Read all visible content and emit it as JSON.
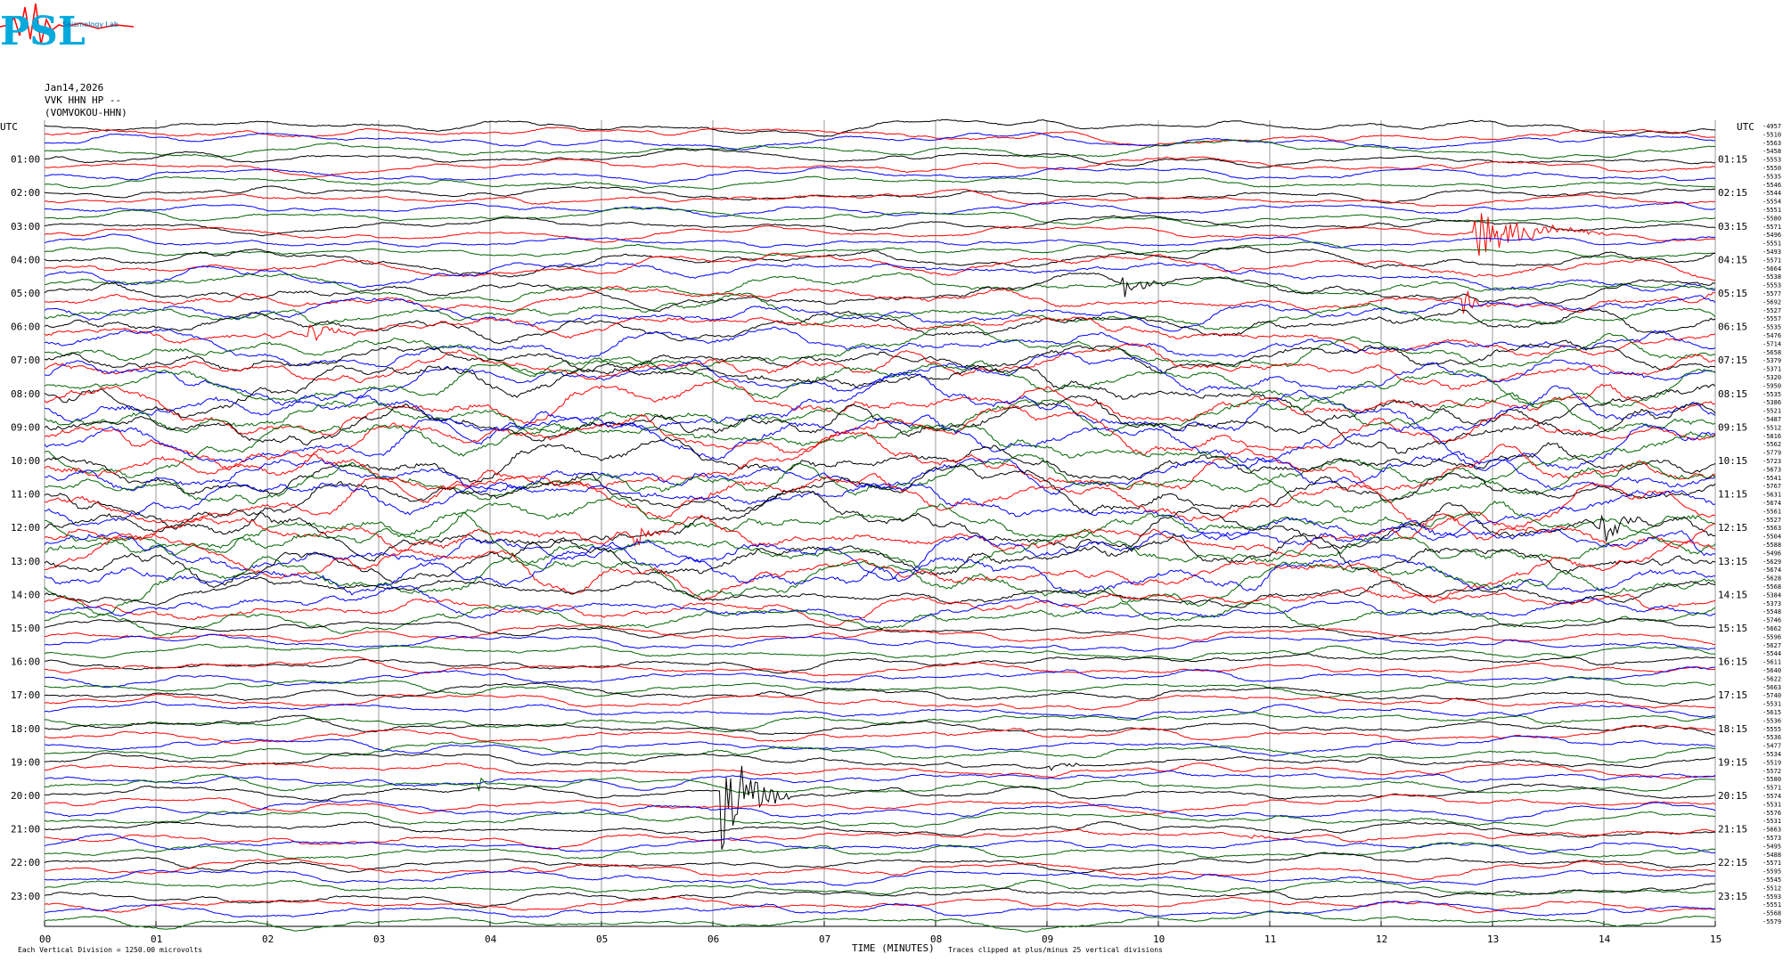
{
  "logo": {
    "text": "PSL",
    "subtitle": "Seismology Lab"
  },
  "header": {
    "date": "Jan14,2026",
    "station": "VVK HHN HP --",
    "station_name": "(VOMVOKOU-HHN)"
  },
  "chart_data": {
    "type": "line",
    "xlabel": "TIME (MINUTES)",
    "x_ticks": [
      "00",
      "01",
      "02",
      "03",
      "04",
      "05",
      "06",
      "07",
      "08",
      "09",
      "10",
      "11",
      "12",
      "13",
      "14",
      "15"
    ],
    "left_axis_label": "UTC",
    "right_axis_label": "UTC",
    "left_hour_labels": [
      "01:00",
      "02:00",
      "03:00",
      "04:00",
      "05:00",
      "06:00",
      "07:00",
      "08:00",
      "09:00",
      "10:00",
      "11:00",
      "12:00",
      "13:00",
      "14:00",
      "15:00",
      "16:00",
      "17:00",
      "18:00",
      "19:00",
      "20:00",
      "21:00",
      "22:00",
      "23:00"
    ],
    "right_hour_labels": [
      "01:15",
      "02:15",
      "03:15",
      "04:15",
      "05:15",
      "06:15",
      "07:15",
      "08:15",
      "09:15",
      "10:15",
      "11:15",
      "12:15",
      "13:15",
      "14:15",
      "15:15",
      "16:15",
      "17:15",
      "18:15",
      "19:15",
      "20:15",
      "21:15",
      "22:15",
      "23:15"
    ],
    "trace_colors": [
      "#000000",
      "#ff0000",
      "#0000ff",
      "#006400"
    ],
    "traces_per_hour": 4,
    "trace_count": 96,
    "trace_duration_minutes": 15,
    "right_values": [
      -4957,
      -5510,
      -5563,
      -5458,
      -5553,
      -5550,
      -5535,
      -5546,
      -5544,
      -5554,
      -5551,
      -5580,
      -5571,
      -5496,
      -5551,
      -5493,
      -5571,
      -5664,
      -5538,
      -5553,
      -5577,
      -5692,
      -5527,
      -5557,
      -5535,
      -5476,
      -5714,
      -5658,
      -5379,
      -5371,
      -5320,
      -5950,
      -5535,
      -5386,
      -5521,
      -5487,
      -5512,
      -5816,
      -5562,
      -5779,
      -5723,
      -5673,
      -5541,
      -5767,
      -5631,
      -5674,
      -5561,
      -5527,
      -5563,
      -5504,
      -5588,
      -5496,
      -5629,
      -5674,
      -5628,
      -5568,
      -5384,
      -5373,
      -5548,
      -5746,
      -5662,
      -5596,
      -5627,
      -5544,
      -5611,
      -5640,
      -5622,
      -5663,
      -5740,
      -5531,
      -5615,
      -5536,
      -5555,
      -5536,
      -5477,
      -5534,
      -5519,
      -5572,
      -5580,
      -5571,
      -5574,
      -5531,
      -5576,
      -5531,
      -5663,
      -5573,
      -5495,
      -5488,
      -5571,
      -5595,
      -5545,
      -5512,
      -5593,
      -5551,
      -5568,
      -5579
    ],
    "footer_left": "Each Vertical Division = 1250.00 microvolts",
    "footer_right": "Traces clipped at plus/minus 25 vertical divisions",
    "events": [
      {
        "trace": 13,
        "minute": 12.85,
        "amplitude": 3.2,
        "duration": 1.2
      },
      {
        "trace": 20,
        "minute": 9.7,
        "amplitude": 1.6,
        "duration": 0.4
      },
      {
        "trace": 21,
        "minute": 12.75,
        "amplitude": 1.8,
        "duration": 0.3
      },
      {
        "trace": 25,
        "minute": 2.4,
        "amplitude": 1.4,
        "duration": 0.5
      },
      {
        "trace": 49,
        "minute": 5.3,
        "amplitude": 2.0,
        "duration": 0.3
      },
      {
        "trace": 48,
        "minute": 14.0,
        "amplitude": 2.2,
        "duration": 0.4
      },
      {
        "trace": 76,
        "minute": 9.05,
        "amplitude": 0.6,
        "duration": 0.5
      },
      {
        "trace": 79,
        "minute": 3.9,
        "amplitude": 1.2,
        "duration": 0.1
      },
      {
        "trace": 80,
        "minute": 6.1,
        "amplitude": 7.5,
        "duration": 0.6
      },
      {
        "trace": 85,
        "minute": 10.8,
        "amplitude": 0.4,
        "duration": 0.3
      }
    ]
  }
}
